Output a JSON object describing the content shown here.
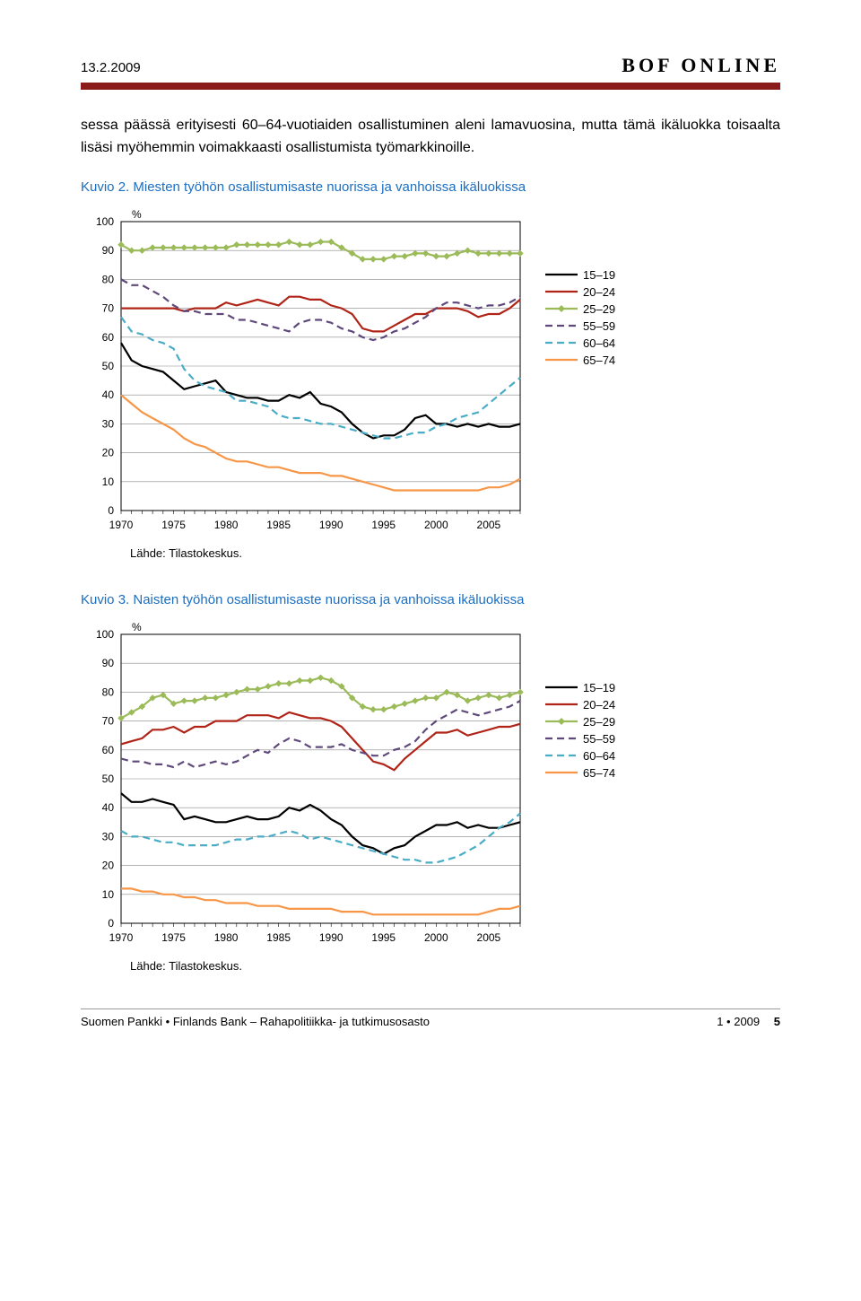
{
  "header": {
    "date_label": "13.2.2009",
    "brand": "BOF ONLINE"
  },
  "paragraph": "sessa päässä erityisesti 60–64-vuotiaiden osallistuminen aleni lamavuosina, mutta tämä ikäluokka toisaalta lisäsi myöhemmin voimakkaasti osallistumista työmarkkinoille.",
  "charts": [
    {
      "title": "Kuvio 2. Miesten työhön osallistumisaste nuorissa ja vanhoissa ikäluokissa",
      "ylabel": "%",
      "xticks": [
        1970,
        1975,
        1980,
        1985,
        1990,
        1995,
        2000,
        2005
      ],
      "yticks": [
        0,
        10,
        20,
        30,
        40,
        50,
        60,
        70,
        80,
        90,
        100
      ],
      "ylim": [
        0,
        100
      ],
      "xlim": [
        1970,
        2008
      ],
      "grid_color": "#888",
      "axis_text_color": "#000",
      "font_size": 12,
      "series": [
        {
          "name": "15–19",
          "color": "#000000",
          "width": 2.2,
          "dash": "",
          "marker": "",
          "data": [
            58,
            52,
            50,
            49,
            48,
            45,
            42,
            43,
            44,
            45,
            41,
            40,
            39,
            39,
            38,
            38,
            40,
            39,
            41,
            37,
            36,
            34,
            30,
            27,
            25,
            26,
            26,
            28,
            32,
            33,
            30,
            30,
            29,
            30,
            29,
            30,
            29,
            29,
            30
          ]
        },
        {
          "name": "20–24",
          "color": "#b02418",
          "width": 2.2,
          "dash": "",
          "marker": "",
          "data": [
            70,
            70,
            70,
            70,
            70,
            70,
            69,
            70,
            70,
            70,
            72,
            71,
            72,
            73,
            72,
            71,
            74,
            74,
            73,
            73,
            71,
            70,
            68,
            63,
            62,
            62,
            64,
            66,
            68,
            68,
            70,
            70,
            70,
            69,
            67,
            68,
            68,
            70,
            73
          ]
        },
        {
          "name": "25–29",
          "color": "#9bbb59",
          "width": 2.2,
          "dash": "",
          "marker": "diamond",
          "data": [
            92,
            90,
            90,
            91,
            91,
            91,
            91,
            91,
            91,
            91,
            91,
            92,
            92,
            92,
            92,
            92,
            93,
            92,
            92,
            93,
            93,
            91,
            89,
            87,
            87,
            87,
            88,
            88,
            89,
            89,
            88,
            88,
            89,
            90,
            89,
            89,
            89,
            89,
            89
          ]
        },
        {
          "name": "55–59",
          "color": "#5f497a",
          "width": 2.2,
          "dash": "8,5",
          "marker": "",
          "data": [
            80,
            78,
            78,
            76,
            74,
            71,
            69,
            69,
            68,
            68,
            68,
            66,
            66,
            65,
            64,
            63,
            62,
            65,
            66,
            66,
            65,
            63,
            62,
            60,
            59,
            60,
            62,
            63,
            65,
            67,
            70,
            72,
            72,
            71,
            70,
            71,
            71,
            72,
            74
          ]
        },
        {
          "name": "60–64",
          "color": "#4bacc6",
          "width": 2.2,
          "dash": "8,5",
          "marker": "",
          "data": [
            67,
            62,
            61,
            59,
            58,
            56,
            49,
            45,
            43,
            42,
            41,
            38,
            38,
            37,
            36,
            33,
            32,
            32,
            31,
            30,
            30,
            29,
            28,
            27,
            26,
            25,
            25,
            26,
            27,
            27,
            29,
            30,
            32,
            33,
            34,
            37,
            40,
            43,
            46
          ]
        },
        {
          "name": "65–74",
          "color": "#f79646",
          "width": 2.2,
          "dash": "",
          "marker": "",
          "data": [
            40,
            37,
            34,
            32,
            30,
            28,
            25,
            23,
            22,
            20,
            18,
            17,
            17,
            16,
            15,
            15,
            14,
            13,
            13,
            13,
            12,
            12,
            11,
            10,
            9,
            8,
            7,
            7,
            7,
            7,
            7,
            7,
            7,
            7,
            7,
            8,
            8,
            9,
            11
          ]
        }
      ],
      "source": "Lähde: Tilastokeskus."
    },
    {
      "title": "Kuvio 3. Naisten työhön osallistumisaste nuorissa ja vanhoissa ikäluokissa",
      "ylabel": "%",
      "xticks": [
        1970,
        1975,
        1980,
        1985,
        1990,
        1995,
        2000,
        2005
      ],
      "yticks": [
        0,
        10,
        20,
        30,
        40,
        50,
        60,
        70,
        80,
        90,
        100
      ],
      "ylim": [
        0,
        100
      ],
      "xlim": [
        1970,
        2008
      ],
      "grid_color": "#888",
      "axis_text_color": "#000",
      "font_size": 12,
      "series": [
        {
          "name": "15–19",
          "color": "#000000",
          "width": 2.2,
          "dash": "",
          "marker": "",
          "data": [
            45,
            42,
            42,
            43,
            42,
            41,
            36,
            37,
            36,
            35,
            35,
            36,
            37,
            36,
            36,
            37,
            40,
            39,
            41,
            39,
            36,
            34,
            30,
            27,
            26,
            24,
            26,
            27,
            30,
            32,
            34,
            34,
            35,
            33,
            34,
            33,
            33,
            34,
            35
          ]
        },
        {
          "name": "20–24",
          "color": "#b02418",
          "width": 2.2,
          "dash": "",
          "marker": "",
          "data": [
            62,
            63,
            64,
            67,
            67,
            68,
            66,
            68,
            68,
            70,
            70,
            70,
            72,
            72,
            72,
            71,
            73,
            72,
            71,
            71,
            70,
            68,
            64,
            60,
            56,
            55,
            53,
            57,
            60,
            63,
            66,
            66,
            67,
            65,
            66,
            67,
            68,
            68,
            69
          ]
        },
        {
          "name": "25–29",
          "color": "#9bbb59",
          "width": 2.2,
          "dash": "",
          "marker": "diamond",
          "data": [
            71,
            73,
            75,
            78,
            79,
            76,
            77,
            77,
            78,
            78,
            79,
            80,
            81,
            81,
            82,
            83,
            83,
            84,
            84,
            85,
            84,
            82,
            78,
            75,
            74,
            74,
            75,
            76,
            77,
            78,
            78,
            80,
            79,
            77,
            78,
            79,
            78,
            79,
            80
          ]
        },
        {
          "name": "55–59",
          "color": "#5f497a",
          "width": 2.2,
          "dash": "8,5",
          "marker": "",
          "data": [
            57,
            56,
            56,
            55,
            55,
            54,
            56,
            54,
            55,
            56,
            55,
            56,
            58,
            60,
            59,
            62,
            64,
            63,
            61,
            61,
            61,
            62,
            60,
            59,
            58,
            58,
            60,
            61,
            63,
            67,
            70,
            72,
            74,
            73,
            72,
            73,
            74,
            75,
            77
          ]
        },
        {
          "name": "60–64",
          "color": "#4bacc6",
          "width": 2.2,
          "dash": "8,5",
          "marker": "",
          "data": [
            32,
            30,
            30,
            29,
            28,
            28,
            27,
            27,
            27,
            27,
            28,
            29,
            29,
            30,
            30,
            31,
            32,
            31,
            29,
            30,
            29,
            28,
            27,
            26,
            25,
            24,
            23,
            22,
            22,
            21,
            21,
            22,
            23,
            25,
            27,
            30,
            33,
            35,
            38
          ]
        },
        {
          "name": "65–74",
          "color": "#f79646",
          "width": 2.2,
          "dash": "",
          "marker": "",
          "data": [
            12,
            12,
            11,
            11,
            10,
            10,
            9,
            9,
            8,
            8,
            7,
            7,
            7,
            6,
            6,
            6,
            5,
            5,
            5,
            5,
            5,
            4,
            4,
            4,
            3,
            3,
            3,
            3,
            3,
            3,
            3,
            3,
            3,
            3,
            3,
            4,
            5,
            5,
            6
          ]
        }
      ],
      "source": "Lähde: Tilastokeskus."
    }
  ],
  "footer": {
    "left": "Suomen Pankki • Finlands Bank – Rahapolitiikka- ja tutkimusosasto",
    "issue": "1 • 2009",
    "page": "5"
  }
}
